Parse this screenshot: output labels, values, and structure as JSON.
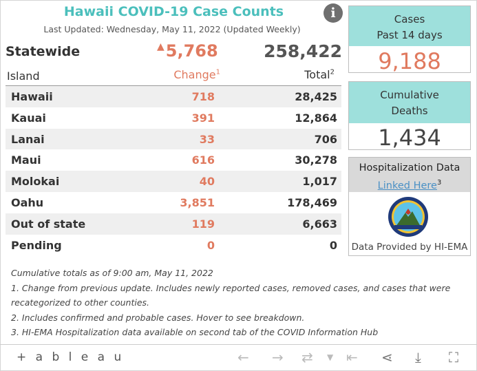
{
  "header": {
    "title": "Hawaii COVID-19 Case Counts",
    "updated": "Last Updated: Wednesday, May 11, 2022 (Updated Weekly)",
    "info_glyph": "i"
  },
  "statewide": {
    "label": "Statewide",
    "change": "5,768",
    "total": "258,422"
  },
  "table": {
    "col_island": "Island",
    "col_change": "Change",
    "col_change_sup": "1",
    "col_total": "Total",
    "col_total_sup": "2",
    "rows": [
      {
        "island": "Hawaii",
        "change": "718",
        "total": "28,425"
      },
      {
        "island": "Kauai",
        "change": "391",
        "total": "12,864"
      },
      {
        "island": "Lanai",
        "change": "33",
        "total": "706"
      },
      {
        "island": "Maui",
        "change": "616",
        "total": "30,278"
      },
      {
        "island": "Molokai",
        "change": "40",
        "total": "1,017"
      },
      {
        "island": "Oahu",
        "change": "3,851",
        "total": "178,469"
      },
      {
        "island": "Out of state",
        "change": "119",
        "total": "6,663"
      },
      {
        "island": "Pending",
        "change": "0",
        "total": "0"
      }
    ]
  },
  "cases_panel": {
    "line1": "Cases",
    "line2": "Past 14 days",
    "value": "9,188"
  },
  "deaths_panel": {
    "line1": "Cumulative",
    "line2": "Deaths",
    "value": "1,434"
  },
  "hosp_panel": {
    "title": "Hospitalization Data",
    "link": "Linked Here",
    "link_sup": "3",
    "provided": "Data Provided by HI-EMA"
  },
  "notes": [
    "Cumulative totals as of 9:00 am, May 11, 2022",
    "1. Change from previous update. Includes newly reported cases, removed cases, and cases that were",
    "recategorized to other counties.",
    "2. Includes confirmed and probable cases. Hover to see breakdown.",
    "3. HI-EMA Hospitalization data available on second tab of the COVID Information Hub"
  ],
  "toolbar": {
    "logo": "+ a b l e a u"
  },
  "colors": {
    "teal": "#4bbfbc",
    "panel_teal": "#9ee0dc",
    "change": "#e07a5f"
  }
}
